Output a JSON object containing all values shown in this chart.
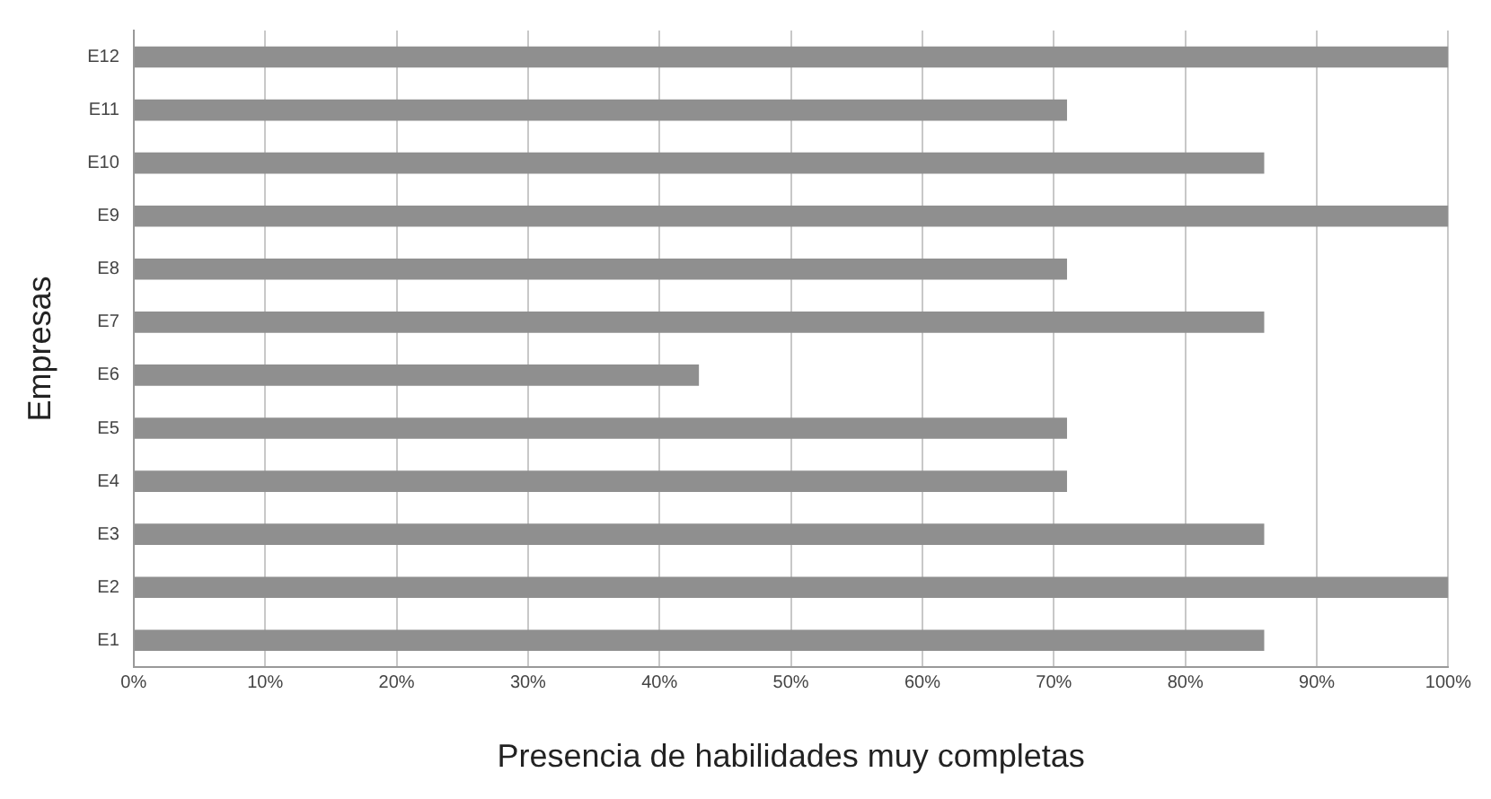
{
  "chart_data": {
    "type": "bar",
    "orientation": "horizontal",
    "xlabel": "Presencia de habilidades muy completas",
    "ylabel": "Empresas",
    "categories": [
      "E12",
      "E11",
      "E10",
      "E9",
      "E8",
      "E7",
      "E6",
      "E5",
      "E4",
      "E3",
      "E2",
      "E1"
    ],
    "values": [
      100,
      71,
      86,
      100,
      71,
      86,
      43,
      71,
      71,
      86,
      100,
      86
    ],
    "color": "#8f8f8f",
    "xlim": [
      0,
      100
    ],
    "xticks": [
      {
        "value": 0,
        "label": "0%"
      },
      {
        "value": 10,
        "label": "10%"
      },
      {
        "value": 20,
        "label": "20%"
      },
      {
        "value": 30,
        "label": "30%"
      },
      {
        "value": 40,
        "label": "40%"
      },
      {
        "value": 50,
        "label": "50%"
      },
      {
        "value": 60,
        "label": "60%"
      },
      {
        "value": 70,
        "label": "70%"
      },
      {
        "value": 80,
        "label": "80%"
      },
      {
        "value": 90,
        "label": "90%"
      },
      {
        "value": 100,
        "label": "100%"
      }
    ],
    "grid": "x",
    "legend": false
  }
}
